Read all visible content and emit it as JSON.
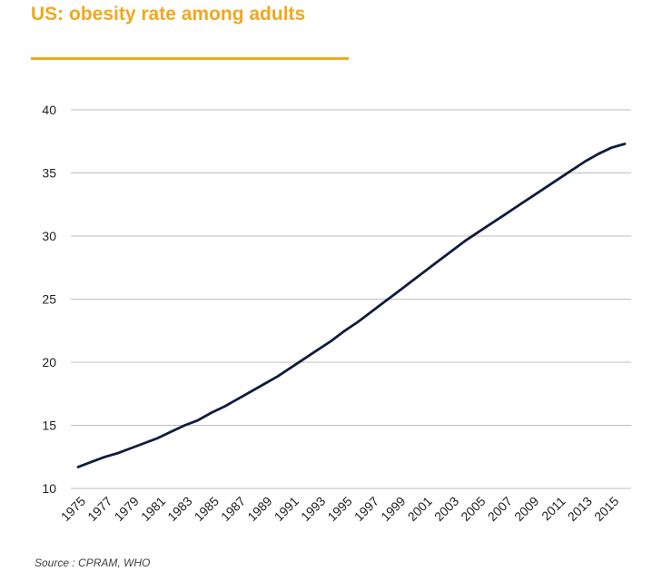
{
  "title": "US: obesity rate among adults",
  "source": "Source : CPRAM, WHO",
  "colors": {
    "accent": "#f0a81e",
    "line": "#0f1d3d",
    "grid": "#bfbfbf"
  },
  "chart_data": {
    "type": "line",
    "title": "US: obesity rate among adults",
    "xlabel": "",
    "ylabel": "",
    "ylim": [
      10,
      40
    ],
    "yticks": [
      10,
      15,
      20,
      25,
      30,
      35,
      40
    ],
    "grid": true,
    "x": [
      1975,
      1976,
      1977,
      1978,
      1979,
      1980,
      1981,
      1982,
      1983,
      1984,
      1985,
      1986,
      1987,
      1988,
      1989,
      1990,
      1991,
      1992,
      1993,
      1994,
      1995,
      1996,
      1997,
      1998,
      1999,
      2000,
      2001,
      2002,
      2003,
      2004,
      2005,
      2006,
      2007,
      2008,
      2009,
      2010,
      2011,
      2012,
      2013,
      2014,
      2015,
      2016
    ],
    "xtick_labels": [
      "1975",
      "1977",
      "1979",
      "1981",
      "1983",
      "1985",
      "1987",
      "1989",
      "1991",
      "1993",
      "1995",
      "1997",
      "1999",
      "2001",
      "2003",
      "2005",
      "2007",
      "2009",
      "2011",
      "2013",
      "2015"
    ],
    "series": [
      {
        "name": "Obesity rate among adults (%)",
        "values": [
          11.7,
          12.1,
          12.5,
          12.8,
          13.2,
          13.6,
          14.0,
          14.5,
          15.0,
          15.4,
          16.0,
          16.5,
          17.1,
          17.7,
          18.3,
          18.9,
          19.6,
          20.3,
          21.0,
          21.7,
          22.5,
          23.2,
          24.0,
          24.8,
          25.6,
          26.4,
          27.2,
          28.0,
          28.8,
          29.6,
          30.3,
          31.0,
          31.7,
          32.4,
          33.1,
          33.8,
          34.5,
          35.2,
          35.9,
          36.5,
          37.0,
          37.3
        ]
      }
    ]
  }
}
